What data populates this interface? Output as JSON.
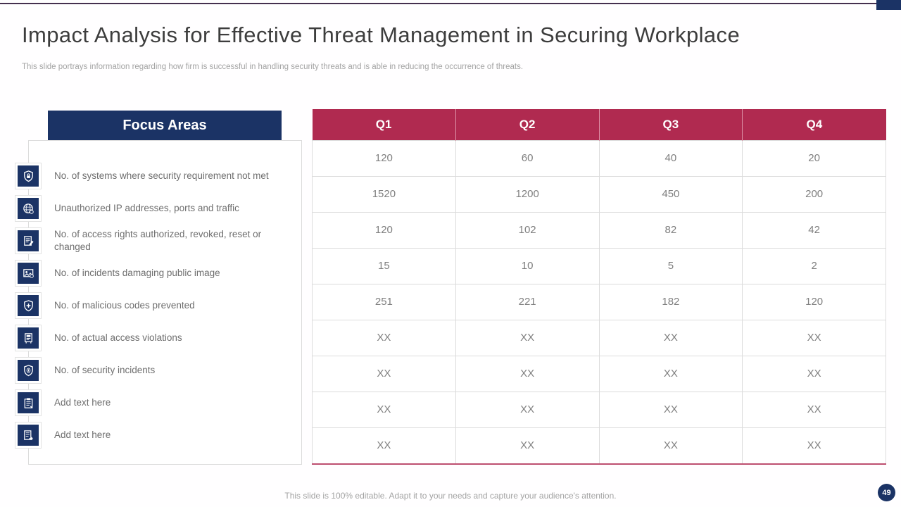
{
  "slide": {
    "title": "Impact Analysis for Effective Threat Management in Securing Workplace",
    "subtitle": "This slide portrays information regarding how firm is successful in handling security threats and is able in reducing the occurrence of threats.",
    "footer": "This slide is 100% editable. Adapt it to your needs and capture your audience's attention.",
    "page_number": "49"
  },
  "focus_areas": {
    "header": "Focus Areas",
    "items": [
      {
        "icon": "shield-lock-icon",
        "label": "No. of systems where security requirement not met"
      },
      {
        "icon": "globe-lock-icon",
        "label": "Unauthorized IP addresses, ports and traffic"
      },
      {
        "icon": "document-pen-icon",
        "label": "No. of access rights authorized, revoked, reset or changed"
      },
      {
        "icon": "public-image-icon",
        "label": "No. of incidents damaging public image"
      },
      {
        "icon": "shield-plus-icon",
        "label": "No. of malicious codes prevented"
      },
      {
        "icon": "access-gate-icon",
        "label": "No. of actual access violations"
      },
      {
        "icon": "shield-fingerprint-icon",
        "label": "No. of security incidents"
      },
      {
        "icon": "clipboard-pencil-icon",
        "label": "Add text here"
      },
      {
        "icon": "document-arrow-icon",
        "label": "Add text here"
      }
    ]
  },
  "table": {
    "columns": [
      "Q1",
      "Q2",
      "Q3",
      "Q4"
    ],
    "rows": [
      [
        "120",
        "60",
        "40",
        "20"
      ],
      [
        "1520",
        "1200",
        "450",
        "200"
      ],
      [
        "120",
        "102",
        "82",
        "42"
      ],
      [
        "15",
        "10",
        "5",
        "2"
      ],
      [
        "251",
        "221",
        "182",
        "120"
      ],
      [
        "XX",
        "XX",
        "XX",
        "XX"
      ],
      [
        "XX",
        "XX",
        "XX",
        "XX"
      ],
      [
        "XX",
        "XX",
        "XX",
        "XX"
      ],
      [
        "XX",
        "XX",
        "XX",
        "XX"
      ]
    ]
  },
  "colors": {
    "navy": "#1b3365",
    "crimson": "#b02a50",
    "accent_line": "#45304f",
    "cell_text": "#7f7f7f",
    "cell_border": "#dcdcdc"
  }
}
